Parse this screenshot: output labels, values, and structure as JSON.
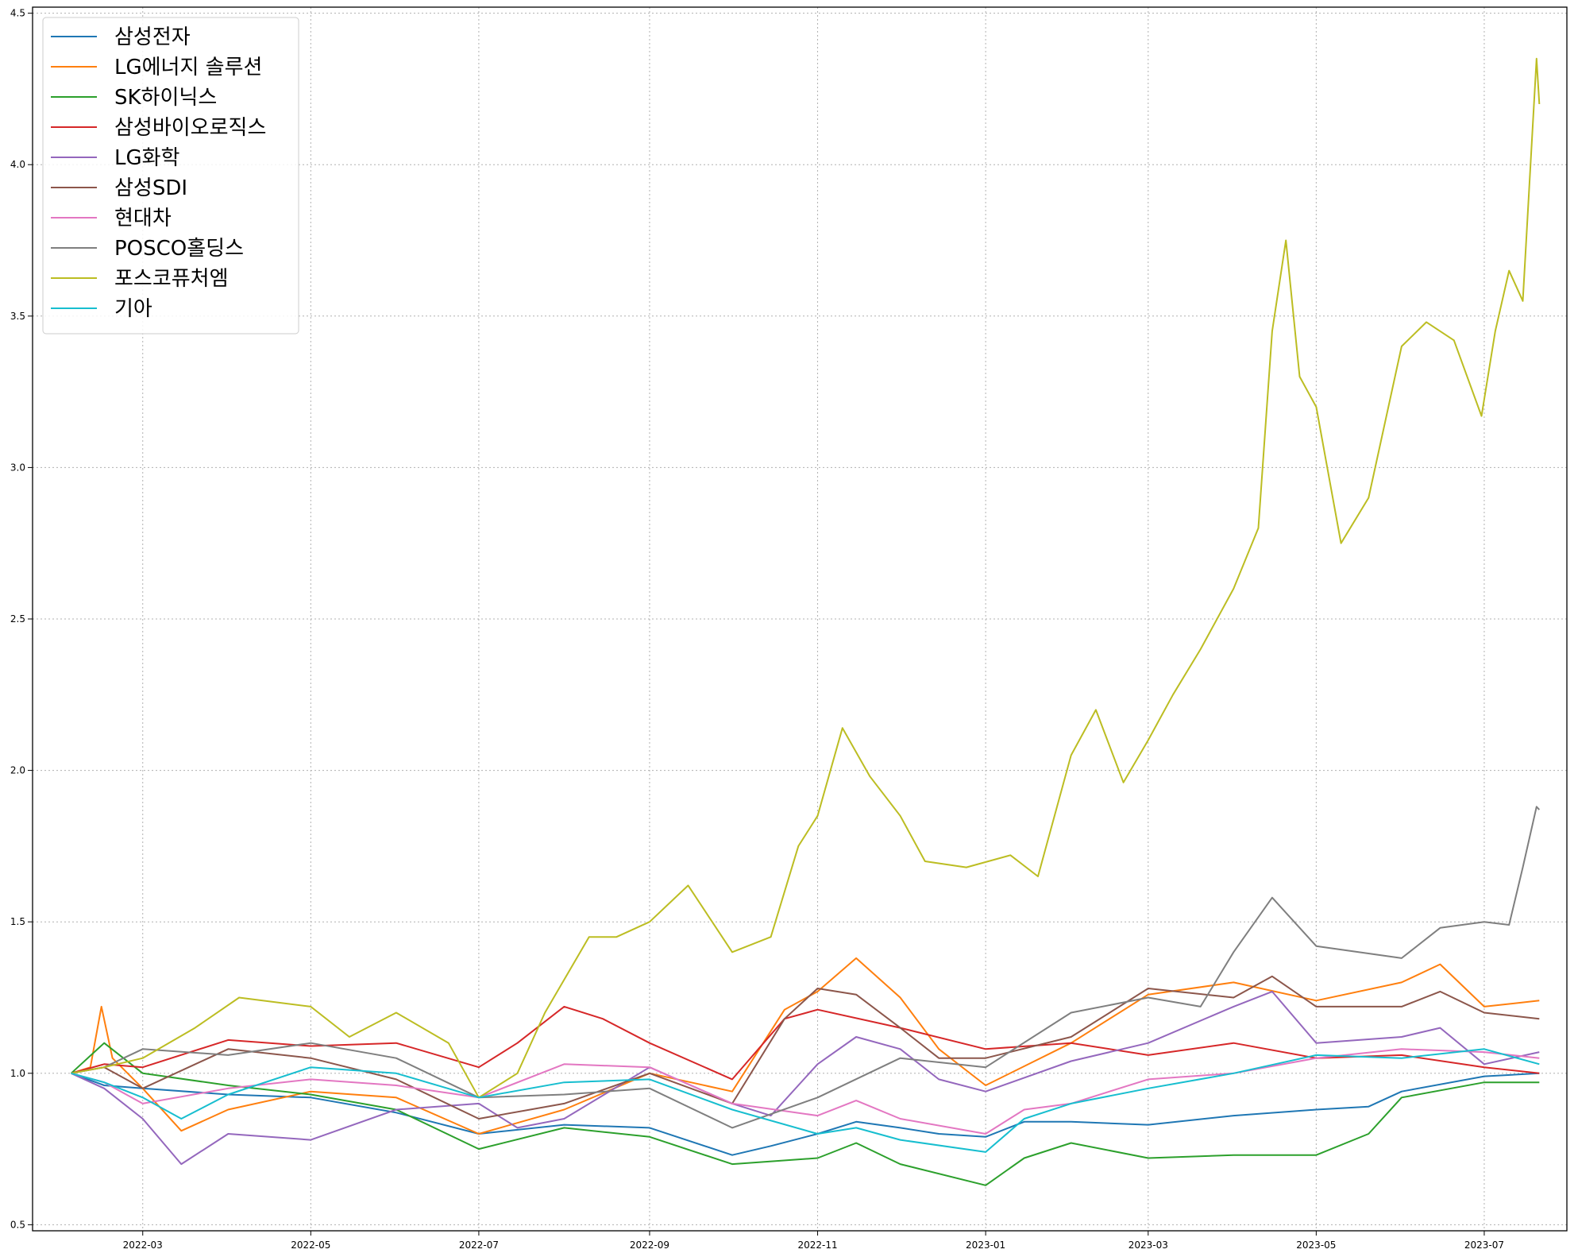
{
  "chart_data": {
    "type": "line",
    "title": "",
    "xlabel": "",
    "ylabel": "",
    "x_ticks": [
      "2022-03",
      "2022-05",
      "2022-07",
      "2022-09",
      "2022-11",
      "2023-01",
      "2023-03",
      "2023-05",
      "2023-07"
    ],
    "y_ticks": [
      "0.5",
      "1.0",
      "1.5",
      "2.0",
      "2.5",
      "3.0",
      "3.5",
      "4.0",
      "4.5"
    ],
    "xlim": [
      "2022-01-20",
      "2023-07-31"
    ],
    "ylim": [
      0.48,
      4.52
    ],
    "grid": true,
    "legend_position": "upper-left",
    "series": [
      {
        "name": "삼성전자",
        "color": "#1f77b4",
        "points": [
          [
            "2022-02-03",
            1.0
          ],
          [
            "2022-02-15",
            0.96
          ],
          [
            "2022-03-01",
            0.95
          ],
          [
            "2022-04-01",
            0.93
          ],
          [
            "2022-05-01",
            0.92
          ],
          [
            "2022-06-01",
            0.87
          ],
          [
            "2022-07-01",
            0.8
          ],
          [
            "2022-08-01",
            0.83
          ],
          [
            "2022-09-01",
            0.82
          ],
          [
            "2022-10-01",
            0.73
          ],
          [
            "2022-10-15",
            0.76
          ],
          [
            "2022-11-01",
            0.8
          ],
          [
            "2022-11-15",
            0.84
          ],
          [
            "2022-12-01",
            0.82
          ],
          [
            "2022-12-15",
            0.8
          ],
          [
            "2023-01-01",
            0.79
          ],
          [
            "2023-01-15",
            0.84
          ],
          [
            "2023-02-01",
            0.84
          ],
          [
            "2023-03-01",
            0.83
          ],
          [
            "2023-04-01",
            0.86
          ],
          [
            "2023-05-01",
            0.88
          ],
          [
            "2023-05-20",
            0.89
          ],
          [
            "2023-06-01",
            0.94
          ],
          [
            "2023-07-01",
            0.99
          ],
          [
            "2023-07-21",
            1.0
          ]
        ]
      },
      {
        "name": "LG에너지 솔루션",
        "color": "#ff7f0e",
        "points": [
          [
            "2022-02-03",
            1.0
          ],
          [
            "2022-02-10",
            1.02
          ],
          [
            "2022-02-14",
            1.22
          ],
          [
            "2022-02-18",
            1.05
          ],
          [
            "2022-03-01",
            0.95
          ],
          [
            "2022-03-15",
            0.81
          ],
          [
            "2022-04-01",
            0.88
          ],
          [
            "2022-05-01",
            0.94
          ],
          [
            "2022-06-01",
            0.92
          ],
          [
            "2022-07-01",
            0.8
          ],
          [
            "2022-08-01",
            0.88
          ],
          [
            "2022-09-01",
            1.0
          ],
          [
            "2022-10-01",
            0.94
          ],
          [
            "2022-10-20",
            1.21
          ],
          [
            "2022-11-01",
            1.27
          ],
          [
            "2022-11-15",
            1.38
          ],
          [
            "2022-12-01",
            1.25
          ],
          [
            "2022-12-15",
            1.08
          ],
          [
            "2023-01-01",
            0.96
          ],
          [
            "2023-02-01",
            1.1
          ],
          [
            "2023-03-01",
            1.26
          ],
          [
            "2023-04-01",
            1.3
          ],
          [
            "2023-05-01",
            1.24
          ],
          [
            "2023-06-01",
            1.3
          ],
          [
            "2023-06-15",
            1.36
          ],
          [
            "2023-07-01",
            1.22
          ],
          [
            "2023-07-21",
            1.24
          ]
        ]
      },
      {
        "name": "SK하이닉스",
        "color": "#2ca02c",
        "points": [
          [
            "2022-02-03",
            1.0
          ],
          [
            "2022-02-15",
            1.1
          ],
          [
            "2022-03-01",
            1.0
          ],
          [
            "2022-04-01",
            0.96
          ],
          [
            "2022-05-01",
            0.93
          ],
          [
            "2022-06-01",
            0.88
          ],
          [
            "2022-07-01",
            0.75
          ],
          [
            "2022-08-01",
            0.82
          ],
          [
            "2022-09-01",
            0.79
          ],
          [
            "2022-10-01",
            0.7
          ],
          [
            "2022-11-01",
            0.72
          ],
          [
            "2022-11-15",
            0.77
          ],
          [
            "2022-12-01",
            0.7
          ],
          [
            "2023-01-01",
            0.63
          ],
          [
            "2023-01-15",
            0.72
          ],
          [
            "2023-02-01",
            0.77
          ],
          [
            "2023-03-01",
            0.72
          ],
          [
            "2023-04-01",
            0.73
          ],
          [
            "2023-05-01",
            0.73
          ],
          [
            "2023-05-20",
            0.8
          ],
          [
            "2023-06-01",
            0.92
          ],
          [
            "2023-07-01",
            0.97
          ],
          [
            "2023-07-21",
            0.97
          ]
        ]
      },
      {
        "name": "삼성바이오로직스",
        "color": "#d62728",
        "points": [
          [
            "2022-02-03",
            1.0
          ],
          [
            "2022-02-15",
            1.03
          ],
          [
            "2022-03-01",
            1.02
          ],
          [
            "2022-04-01",
            1.11
          ],
          [
            "2022-05-01",
            1.09
          ],
          [
            "2022-06-01",
            1.1
          ],
          [
            "2022-07-01",
            1.02
          ],
          [
            "2022-07-15",
            1.1
          ],
          [
            "2022-08-01",
            1.22
          ],
          [
            "2022-08-15",
            1.18
          ],
          [
            "2022-09-01",
            1.1
          ],
          [
            "2022-10-01",
            0.98
          ],
          [
            "2022-10-20",
            1.18
          ],
          [
            "2022-11-01",
            1.21
          ],
          [
            "2022-12-01",
            1.15
          ],
          [
            "2023-01-01",
            1.08
          ],
          [
            "2023-02-01",
            1.1
          ],
          [
            "2023-03-01",
            1.06
          ],
          [
            "2023-04-01",
            1.1
          ],
          [
            "2023-05-01",
            1.05
          ],
          [
            "2023-06-01",
            1.06
          ],
          [
            "2023-07-01",
            1.02
          ],
          [
            "2023-07-21",
            1.0
          ]
        ]
      },
      {
        "name": "LG화학",
        "color": "#9467bd",
        "points": [
          [
            "2022-02-03",
            1.0
          ],
          [
            "2022-02-15",
            0.95
          ],
          [
            "2022-03-01",
            0.85
          ],
          [
            "2022-03-15",
            0.7
          ],
          [
            "2022-04-01",
            0.8
          ],
          [
            "2022-05-01",
            0.78
          ],
          [
            "2022-06-01",
            0.88
          ],
          [
            "2022-07-01",
            0.9
          ],
          [
            "2022-07-15",
            0.82
          ],
          [
            "2022-08-01",
            0.85
          ],
          [
            "2022-09-01",
            1.02
          ],
          [
            "2022-10-01",
            0.9
          ],
          [
            "2022-10-15",
            0.86
          ],
          [
            "2022-11-01",
            1.03
          ],
          [
            "2022-11-15",
            1.12
          ],
          [
            "2022-12-01",
            1.08
          ],
          [
            "2022-12-15",
            0.98
          ],
          [
            "2023-01-01",
            0.94
          ],
          [
            "2023-02-01",
            1.04
          ],
          [
            "2023-03-01",
            1.1
          ],
          [
            "2023-04-01",
            1.22
          ],
          [
            "2023-04-15",
            1.27
          ],
          [
            "2023-05-01",
            1.1
          ],
          [
            "2023-06-01",
            1.12
          ],
          [
            "2023-06-15",
            1.15
          ],
          [
            "2023-07-01",
            1.03
          ],
          [
            "2023-07-21",
            1.07
          ]
        ]
      },
      {
        "name": "삼성SDI",
        "color": "#8c564b",
        "points": [
          [
            "2022-02-03",
            1.0
          ],
          [
            "2022-02-15",
            1.02
          ],
          [
            "2022-03-01",
            0.95
          ],
          [
            "2022-04-01",
            1.08
          ],
          [
            "2022-05-01",
            1.05
          ],
          [
            "2022-06-01",
            0.98
          ],
          [
            "2022-07-01",
            0.85
          ],
          [
            "2022-08-01",
            0.9
          ],
          [
            "2022-09-01",
            1.0
          ],
          [
            "2022-10-01",
            0.9
          ],
          [
            "2022-10-20",
            1.18
          ],
          [
            "2022-11-01",
            1.28
          ],
          [
            "2022-11-15",
            1.26
          ],
          [
            "2022-12-01",
            1.15
          ],
          [
            "2022-12-15",
            1.05
          ],
          [
            "2023-01-01",
            1.05
          ],
          [
            "2023-02-01",
            1.12
          ],
          [
            "2023-03-01",
            1.28
          ],
          [
            "2023-04-01",
            1.25
          ],
          [
            "2023-04-15",
            1.32
          ],
          [
            "2023-05-01",
            1.22
          ],
          [
            "2023-06-01",
            1.22
          ],
          [
            "2023-06-15",
            1.27
          ],
          [
            "2023-07-01",
            1.2
          ],
          [
            "2023-07-21",
            1.18
          ]
        ]
      },
      {
        "name": "현대차",
        "color": "#e377c2",
        "points": [
          [
            "2022-02-03",
            1.0
          ],
          [
            "2022-02-15",
            0.97
          ],
          [
            "2022-03-01",
            0.9
          ],
          [
            "2022-04-01",
            0.95
          ],
          [
            "2022-05-01",
            0.98
          ],
          [
            "2022-06-01",
            0.96
          ],
          [
            "2022-07-01",
            0.92
          ],
          [
            "2022-08-01",
            1.03
          ],
          [
            "2022-09-01",
            1.02
          ],
          [
            "2022-10-01",
            0.9
          ],
          [
            "2022-11-01",
            0.86
          ],
          [
            "2022-11-15",
            0.91
          ],
          [
            "2022-12-01",
            0.85
          ],
          [
            "2023-01-01",
            0.8
          ],
          [
            "2023-01-15",
            0.88
          ],
          [
            "2023-02-01",
            0.9
          ],
          [
            "2023-03-01",
            0.98
          ],
          [
            "2023-04-01",
            1.0
          ],
          [
            "2023-05-01",
            1.05
          ],
          [
            "2023-06-01",
            1.08
          ],
          [
            "2023-07-01",
            1.07
          ],
          [
            "2023-07-21",
            1.05
          ]
        ]
      },
      {
        "name": "POSCO홀딩스",
        "color": "#7f7f7f",
        "points": [
          [
            "2022-02-03",
            1.0
          ],
          [
            "2022-02-15",
            1.02
          ],
          [
            "2022-03-01",
            1.08
          ],
          [
            "2022-04-01",
            1.06
          ],
          [
            "2022-05-01",
            1.1
          ],
          [
            "2022-06-01",
            1.05
          ],
          [
            "2022-07-01",
            0.92
          ],
          [
            "2022-08-01",
            0.93
          ],
          [
            "2022-09-01",
            0.95
          ],
          [
            "2022-10-01",
            0.82
          ],
          [
            "2022-11-01",
            0.92
          ],
          [
            "2022-12-01",
            1.05
          ],
          [
            "2023-01-01",
            1.02
          ],
          [
            "2023-02-01",
            1.2
          ],
          [
            "2023-03-01",
            1.25
          ],
          [
            "2023-03-20",
            1.22
          ],
          [
            "2023-04-01",
            1.4
          ],
          [
            "2023-04-15",
            1.58
          ],
          [
            "2023-05-01",
            1.42
          ],
          [
            "2023-06-01",
            1.38
          ],
          [
            "2023-06-15",
            1.48
          ],
          [
            "2023-07-01",
            1.5
          ],
          [
            "2023-07-10",
            1.49
          ],
          [
            "2023-07-15",
            1.68
          ],
          [
            "2023-07-20",
            1.88
          ],
          [
            "2023-07-21",
            1.87
          ]
        ]
      },
      {
        "name": "포스코퓨처엠",
        "color": "#bcbd22",
        "points": [
          [
            "2022-02-03",
            1.0
          ],
          [
            "2022-02-15",
            1.02
          ],
          [
            "2022-03-01",
            1.05
          ],
          [
            "2022-03-20",
            1.15
          ],
          [
            "2022-04-05",
            1.25
          ],
          [
            "2022-05-01",
            1.22
          ],
          [
            "2022-05-15",
            1.12
          ],
          [
            "2022-06-01",
            1.2
          ],
          [
            "2022-06-20",
            1.1
          ],
          [
            "2022-07-01",
            0.92
          ],
          [
            "2022-07-15",
            1.0
          ],
          [
            "2022-07-25",
            1.2
          ],
          [
            "2022-08-10",
            1.45
          ],
          [
            "2022-08-20",
            1.45
          ],
          [
            "2022-09-01",
            1.5
          ],
          [
            "2022-09-15",
            1.62
          ],
          [
            "2022-10-01",
            1.4
          ],
          [
            "2022-10-15",
            1.45
          ],
          [
            "2022-10-25",
            1.75
          ],
          [
            "2022-11-01",
            1.85
          ],
          [
            "2022-11-10",
            2.14
          ],
          [
            "2022-11-20",
            1.98
          ],
          [
            "2022-12-01",
            1.85
          ],
          [
            "2022-12-10",
            1.7
          ],
          [
            "2022-12-25",
            1.68
          ],
          [
            "2023-01-10",
            1.72
          ],
          [
            "2023-01-20",
            1.65
          ],
          [
            "2023-02-01",
            2.05
          ],
          [
            "2023-02-10",
            2.2
          ],
          [
            "2023-02-20",
            1.96
          ],
          [
            "2023-03-01",
            2.1
          ],
          [
            "2023-03-10",
            2.25
          ],
          [
            "2023-03-20",
            2.4
          ],
          [
            "2023-04-01",
            2.6
          ],
          [
            "2023-04-10",
            2.8
          ],
          [
            "2023-04-15",
            3.45
          ],
          [
            "2023-04-20",
            3.75
          ],
          [
            "2023-04-25",
            3.3
          ],
          [
            "2023-05-01",
            3.2
          ],
          [
            "2023-05-10",
            2.75
          ],
          [
            "2023-05-20",
            2.9
          ],
          [
            "2023-06-01",
            3.4
          ],
          [
            "2023-06-10",
            3.48
          ],
          [
            "2023-06-20",
            3.42
          ],
          [
            "2023-06-30",
            3.17
          ],
          [
            "2023-07-05",
            3.45
          ],
          [
            "2023-07-10",
            3.65
          ],
          [
            "2023-07-15",
            3.55
          ],
          [
            "2023-07-20",
            4.35
          ],
          [
            "2023-07-21",
            4.2
          ]
        ]
      },
      {
        "name": "기아",
        "color": "#17becf",
        "points": [
          [
            "2022-02-03",
            1.0
          ],
          [
            "2022-02-15",
            0.97
          ],
          [
            "2022-03-01",
            0.92
          ],
          [
            "2022-03-15",
            0.85
          ],
          [
            "2022-04-01",
            0.93
          ],
          [
            "2022-05-01",
            1.02
          ],
          [
            "2022-06-01",
            1.0
          ],
          [
            "2022-07-01",
            0.92
          ],
          [
            "2022-08-01",
            0.97
          ],
          [
            "2022-09-01",
            0.98
          ],
          [
            "2022-10-01",
            0.88
          ],
          [
            "2022-11-01",
            0.8
          ],
          [
            "2022-11-15",
            0.82
          ],
          [
            "2022-12-01",
            0.78
          ],
          [
            "2023-01-01",
            0.74
          ],
          [
            "2023-01-15",
            0.85
          ],
          [
            "2023-02-01",
            0.9
          ],
          [
            "2023-03-01",
            0.95
          ],
          [
            "2023-04-01",
            1.0
          ],
          [
            "2023-05-01",
            1.06
          ],
          [
            "2023-06-01",
            1.05
          ],
          [
            "2023-07-01",
            1.08
          ],
          [
            "2023-07-21",
            1.03
          ]
        ]
      }
    ]
  }
}
